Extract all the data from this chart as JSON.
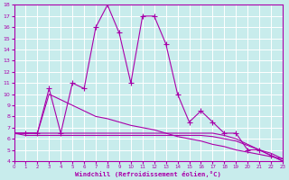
{
  "xlabel": "Windchill (Refroidissement éolien,°C)",
  "bg_color": "#c8ecec",
  "grid_color": "#ffffff",
  "line_color": "#aa00aa",
  "x": [
    0,
    1,
    2,
    3,
    4,
    5,
    6,
    7,
    8,
    9,
    10,
    11,
    12,
    13,
    14,
    15,
    16,
    17,
    18,
    19,
    20,
    21,
    22,
    23
  ],
  "s1": [
    6.5,
    6.5,
    6.5,
    10.5,
    6.5,
    11.0,
    10.5,
    16.0,
    18.0,
    15.5,
    11.0,
    17.0,
    17.0,
    14.5,
    10.0,
    7.5,
    8.5,
    7.5,
    6.5,
    6.5,
    5.0,
    5.0,
    4.5,
    4.0
  ],
  "s2": [
    6.5,
    6.5,
    6.5,
    10.0,
    9.5,
    9.0,
    8.5,
    8.0,
    7.8,
    7.5,
    7.2,
    7.0,
    6.8,
    6.5,
    6.2,
    6.0,
    5.8,
    5.5,
    5.3,
    5.0,
    4.8,
    4.6,
    4.4,
    4.2
  ],
  "s3_flat1": [
    6.5,
    6.5,
    6.5,
    6.5,
    6.5,
    6.5,
    6.5,
    6.5,
    6.5,
    6.5,
    6.5,
    6.5,
    6.5,
    6.5,
    6.5,
    6.5,
    6.5,
    6.5,
    6.3,
    6.0,
    5.5,
    5.0,
    4.7,
    4.2
  ],
  "s3_flat2": [
    6.5,
    6.3,
    6.3,
    6.3,
    6.3,
    6.3,
    6.3,
    6.3,
    6.3,
    6.3,
    6.3,
    6.3,
    6.3,
    6.3,
    6.3,
    6.3,
    6.3,
    6.2,
    6.0,
    5.8,
    5.4,
    5.0,
    4.5,
    4.0
  ],
  "ylim": [
    4,
    18
  ],
  "xlim": [
    0,
    23
  ],
  "yticks": [
    4,
    5,
    6,
    7,
    8,
    9,
    10,
    11,
    12,
    13,
    14,
    15,
    16,
    17,
    18
  ],
  "xticks": [
    0,
    1,
    2,
    3,
    4,
    5,
    6,
    7,
    8,
    9,
    10,
    11,
    12,
    13,
    14,
    15,
    16,
    17,
    18,
    19,
    20,
    21,
    22,
    23
  ]
}
